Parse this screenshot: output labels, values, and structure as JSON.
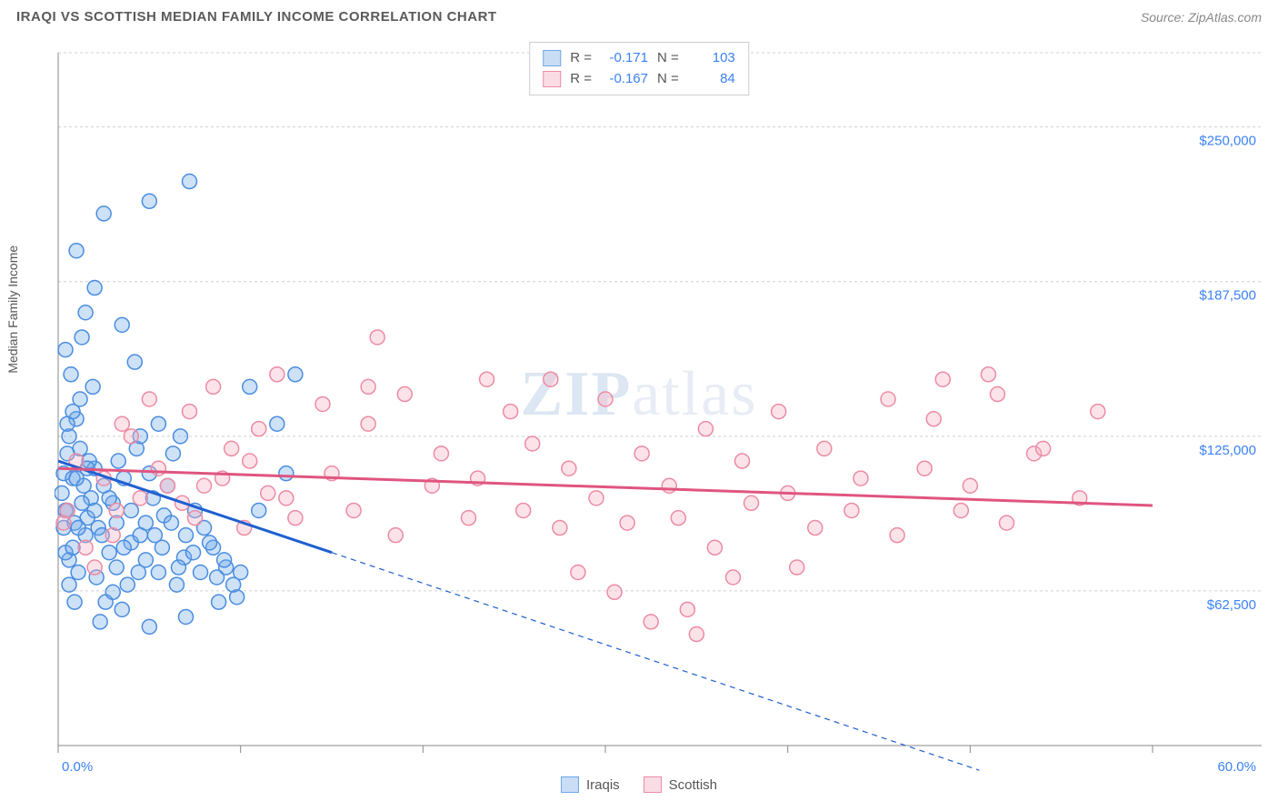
{
  "header": {
    "title": "IRAQI VS SCOTTISH MEDIAN FAMILY INCOME CORRELATION CHART",
    "source": "Source: ZipAtlas.com"
  },
  "watermark": {
    "zip": "ZIP",
    "atlas": "atlas"
  },
  "chart": {
    "type": "scatter",
    "ylabel": "Median Family Income",
    "xlim": [
      0,
      60
    ],
    "ylim": [
      0,
      280000
    ],
    "x_ticks": [
      0,
      10,
      20,
      30,
      40,
      50,
      60
    ],
    "x_tick_labels_shown": {
      "0": "0.0%",
      "60": "60.0%"
    },
    "y_gridlines": [
      62500,
      125000,
      187500,
      250000,
      280000
    ],
    "y_tick_labels": {
      "62500": "$62,500",
      "125000": "$125,000",
      "187500": "$187,500",
      "250000": "$250,000"
    },
    "background_color": "#ffffff",
    "grid_color": "#d0d0d0",
    "axis_color": "#888888",
    "label_fontsize": 14,
    "tick_fontsize": 15,
    "tick_label_color": "#3b82f6",
    "marker_radius": 8,
    "marker_stroke_width": 1.5,
    "marker_fill_opacity": 0.35,
    "series": [
      {
        "name": "Iraqis",
        "color": "#6fa8e8",
        "stroke": "#4a8de0",
        "trend": {
          "color": "#1f5fd0",
          "width": 3,
          "x1": 0,
          "y1": 115000,
          "x2_solid": 15,
          "y2_solid": 78000,
          "x2_dash": 50.5,
          "y2_dash": -10000,
          "dash": "6 5"
        },
        "R": "-0.171",
        "N": "103",
        "points": [
          [
            0.3,
            110000
          ],
          [
            0.5,
            118000
          ],
          [
            0.4,
            95000
          ],
          [
            0.6,
            125000
          ],
          [
            0.8,
            108000
          ],
          [
            1.0,
            132000
          ],
          [
            0.2,
            102000
          ],
          [
            0.9,
            90000
          ],
          [
            1.2,
            140000
          ],
          [
            1.5,
            85000
          ],
          [
            0.7,
            150000
          ],
          [
            1.8,
            100000
          ],
          [
            2.0,
            112000
          ],
          [
            0.4,
            160000
          ],
          [
            2.2,
            88000
          ],
          [
            1.1,
            70000
          ],
          [
            2.5,
            105000
          ],
          [
            0.6,
            75000
          ],
          [
            3.0,
            98000
          ],
          [
            1.3,
            165000
          ],
          [
            3.3,
            115000
          ],
          [
            2.8,
            78000
          ],
          [
            1.6,
            92000
          ],
          [
            3.6,
            108000
          ],
          [
            4.0,
            82000
          ],
          [
            2.1,
            68000
          ],
          [
            4.3,
            120000
          ],
          [
            1.9,
            145000
          ],
          [
            4.8,
            90000
          ],
          [
            3.2,
            72000
          ],
          [
            5.2,
            100000
          ],
          [
            2.6,
            58000
          ],
          [
            5.8,
            93000
          ],
          [
            3.8,
            65000
          ],
          [
            6.3,
            118000
          ],
          [
            4.5,
            85000
          ],
          [
            6.9,
            76000
          ],
          [
            5.0,
            110000
          ],
          [
            7.5,
            95000
          ],
          [
            3.0,
            62000
          ],
          [
            8.0,
            88000
          ],
          [
            5.5,
            70000
          ],
          [
            8.5,
            80000
          ],
          [
            6.0,
            105000
          ],
          [
            9.2,
            72000
          ],
          [
            4.2,
            155000
          ],
          [
            9.8,
            60000
          ],
          [
            6.5,
            65000
          ],
          [
            2.5,
            215000
          ],
          [
            3.5,
            170000
          ],
          [
            7.2,
            228000
          ],
          [
            5.0,
            220000
          ],
          [
            1.0,
            200000
          ],
          [
            1.5,
            175000
          ],
          [
            2.0,
            185000
          ],
          [
            0.5,
            130000
          ],
          [
            0.8,
            135000
          ],
          [
            1.2,
            120000
          ],
          [
            0.3,
            88000
          ],
          [
            0.4,
            78000
          ],
          [
            0.6,
            65000
          ],
          [
            0.9,
            58000
          ],
          [
            2.3,
            50000
          ],
          [
            3.5,
            55000
          ],
          [
            5.0,
            48000
          ],
          [
            7.0,
            52000
          ],
          [
            8.8,
            58000
          ],
          [
            10.5,
            145000
          ],
          [
            11.0,
            95000
          ],
          [
            12.0,
            130000
          ],
          [
            12.5,
            110000
          ],
          [
            13.0,
            150000
          ],
          [
            4.5,
            125000
          ],
          [
            5.5,
            130000
          ],
          [
            6.7,
            125000
          ],
          [
            1.4,
            105000
          ],
          [
            1.7,
            115000
          ],
          [
            2.0,
            95000
          ],
          [
            2.4,
            85000
          ],
          [
            2.8,
            100000
          ],
          [
            3.2,
            90000
          ],
          [
            3.6,
            80000
          ],
          [
            4.0,
            95000
          ],
          [
            4.4,
            70000
          ],
          [
            4.8,
            75000
          ],
          [
            5.3,
            85000
          ],
          [
            5.7,
            80000
          ],
          [
            6.2,
            90000
          ],
          [
            6.6,
            72000
          ],
          [
            7.0,
            85000
          ],
          [
            7.4,
            78000
          ],
          [
            7.8,
            70000
          ],
          [
            8.3,
            82000
          ],
          [
            8.7,
            68000
          ],
          [
            9.1,
            75000
          ],
          [
            9.6,
            65000
          ],
          [
            10.0,
            70000
          ],
          [
            1.0,
            108000
          ],
          [
            1.3,
            98000
          ],
          [
            1.6,
            112000
          ],
          [
            0.5,
            95000
          ],
          [
            0.8,
            80000
          ],
          [
            1.1,
            88000
          ]
        ]
      },
      {
        "name": "Scottish",
        "color": "#f5b0c0",
        "stroke": "#ec8ba3",
        "trend": {
          "color": "#e05580",
          "width": 3,
          "x1": 0,
          "y1": 112000,
          "x2_solid": 60,
          "y2_solid": 97000
        },
        "R": "-0.167",
        "N": "84",
        "points": [
          [
            1.0,
            115000
          ],
          [
            2.5,
            108000
          ],
          [
            3.2,
            95000
          ],
          [
            4.0,
            125000
          ],
          [
            5.5,
            112000
          ],
          [
            6.8,
            98000
          ],
          [
            7.2,
            135000
          ],
          [
            8.0,
            105000
          ],
          [
            9.5,
            120000
          ],
          [
            10.2,
            88000
          ],
          [
            11.0,
            128000
          ],
          [
            12.5,
            100000
          ],
          [
            13.0,
            92000
          ],
          [
            14.5,
            138000
          ],
          [
            15.0,
            110000
          ],
          [
            16.2,
            95000
          ],
          [
            17.0,
            130000
          ],
          [
            18.5,
            85000
          ],
          [
            19.0,
            142000
          ],
          [
            20.5,
            105000
          ],
          [
            21.0,
            118000
          ],
          [
            22.5,
            92000
          ],
          [
            23.0,
            108000
          ],
          [
            24.8,
            135000
          ],
          [
            25.5,
            95000
          ],
          [
            26.0,
            122000
          ],
          [
            27.5,
            88000
          ],
          [
            28.0,
            112000
          ],
          [
            29.5,
            100000
          ],
          [
            30.0,
            140000
          ],
          [
            31.2,
            90000
          ],
          [
            32.0,
            118000
          ],
          [
            33.5,
            105000
          ],
          [
            34.0,
            92000
          ],
          [
            35.5,
            128000
          ],
          [
            36.0,
            80000
          ],
          [
            37.5,
            115000
          ],
          [
            38.0,
            98000
          ],
          [
            39.5,
            135000
          ],
          [
            40.0,
            102000
          ],
          [
            41.5,
            88000
          ],
          [
            42.0,
            120000
          ],
          [
            43.5,
            95000
          ],
          [
            44.0,
            108000
          ],
          [
            45.5,
            140000
          ],
          [
            46.0,
            85000
          ],
          [
            47.5,
            112000
          ],
          [
            48.0,
            132000
          ],
          [
            49.5,
            95000
          ],
          [
            50.0,
            105000
          ],
          [
            51.5,
            142000
          ],
          [
            52.0,
            90000
          ],
          [
            53.5,
            118000
          ],
          [
            54.0,
            120000
          ],
          [
            56.0,
            100000
          ],
          [
            57.0,
            135000
          ],
          [
            3.5,
            130000
          ],
          [
            5.0,
            140000
          ],
          [
            8.5,
            145000
          ],
          [
            12.0,
            150000
          ],
          [
            17.5,
            165000
          ],
          [
            17.0,
            145000
          ],
          [
            23.5,
            148000
          ],
          [
            28.5,
            70000
          ],
          [
            30.5,
            62000
          ],
          [
            32.5,
            50000
          ],
          [
            34.5,
            55000
          ],
          [
            35.0,
            45000
          ],
          [
            37.0,
            68000
          ],
          [
            40.5,
            72000
          ],
          [
            27.0,
            148000
          ],
          [
            48.5,
            148000
          ],
          [
            51.0,
            150000
          ],
          [
            0.5,
            95000
          ],
          [
            1.5,
            80000
          ],
          [
            2.0,
            72000
          ],
          [
            3.0,
            85000
          ],
          [
            4.5,
            100000
          ],
          [
            6.0,
            105000
          ],
          [
            7.5,
            92000
          ],
          [
            9.0,
            108000
          ],
          [
            10.5,
            115000
          ],
          [
            11.5,
            102000
          ],
          [
            0.3,
            90000
          ]
        ]
      }
    ],
    "legend_top": {
      "rows": [
        {
          "swatch_fill": "#c9ddf5",
          "swatch_border": "#6fa8e8",
          "r_label": "R =",
          "r_val": "-0.171",
          "n_label": "N =",
          "n_val": "103"
        },
        {
          "swatch_fill": "#fadce4",
          "swatch_border": "#ec8ba3",
          "r_label": "R =",
          "r_val": "-0.167",
          "n_label": "N =",
          "n_val": "84"
        }
      ]
    },
    "legend_bottom": {
      "items": [
        {
          "swatch_fill": "#c9ddf5",
          "swatch_border": "#6fa8e8",
          "label": "Iraqis"
        },
        {
          "swatch_fill": "#fadce4",
          "swatch_border": "#ec8ba3",
          "label": "Scottish"
        }
      ]
    }
  }
}
